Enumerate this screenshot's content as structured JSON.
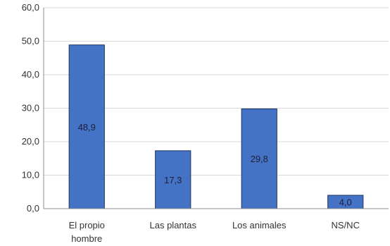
{
  "chart_data": {
    "type": "bar",
    "categories": [
      [
        "El propio",
        "hombre"
      ],
      [
        "Las plantas"
      ],
      [
        "Los animales"
      ],
      [
        "NS/NC"
      ]
    ],
    "values": [
      48.9,
      17.3,
      29.8,
      4.0
    ],
    "data_labels": [
      "48,9",
      "17,3",
      "29,8",
      "4,0"
    ],
    "ylim": [
      0,
      60
    ],
    "yticks": [
      0,
      10,
      20,
      30,
      40,
      50,
      60
    ],
    "ytick_labels": [
      "0,0",
      "10,0",
      "20,0",
      "30,0",
      "40,0",
      "50,0",
      "60,0"
    ],
    "grid": true,
    "legend": "none",
    "colors": {
      "bar_fill": "#4472c4",
      "bar_stroke": "#1f3864",
      "grid": "#d9d9d9",
      "axis": "#8c8c8c"
    }
  }
}
